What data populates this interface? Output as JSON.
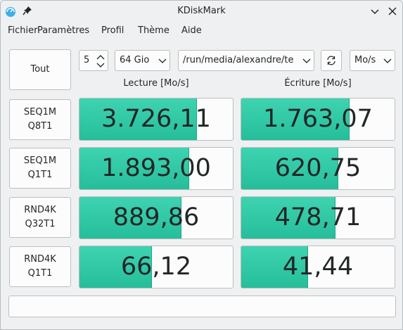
{
  "window": {
    "title": "KDiskMark"
  },
  "menu": [
    "Fichier",
    "Paramètres",
    "Profil",
    "Thème",
    "Aide"
  ],
  "toolbar": {
    "all_label": "Tout",
    "runs": "5",
    "size": "64 Gio",
    "path": "/run/media/alexandre/test-",
    "unit": "Mo/s"
  },
  "headers": {
    "read": "Lecture [Mo/s]",
    "write": "Écriture [Mo/s]"
  },
  "rows": [
    {
      "line1": "SEQ1M",
      "line2": "Q8T1",
      "read": "3.726,11",
      "write": "1.763,07",
      "read_fill": 0.76,
      "write_fill": 0.7
    },
    {
      "line1": "SEQ1M",
      "line2": "Q1T1",
      "read": "1.893,00",
      "write": "620,75",
      "read_fill": 0.71,
      "write_fill": 0.63
    },
    {
      "line1": "RND4K",
      "line2": "Q32T1",
      "read": "889,86",
      "write": "478,71",
      "read_fill": 0.66,
      "write_fill": 0.61
    },
    {
      "line1": "RND4K",
      "line2": "Q1T1",
      "read": "66,12",
      "write": "41,44",
      "read_fill": 0.47,
      "write_fill": 0.43
    }
  ],
  "colors": {
    "accent": "#31c9a6",
    "background": "#eff0f1"
  }
}
